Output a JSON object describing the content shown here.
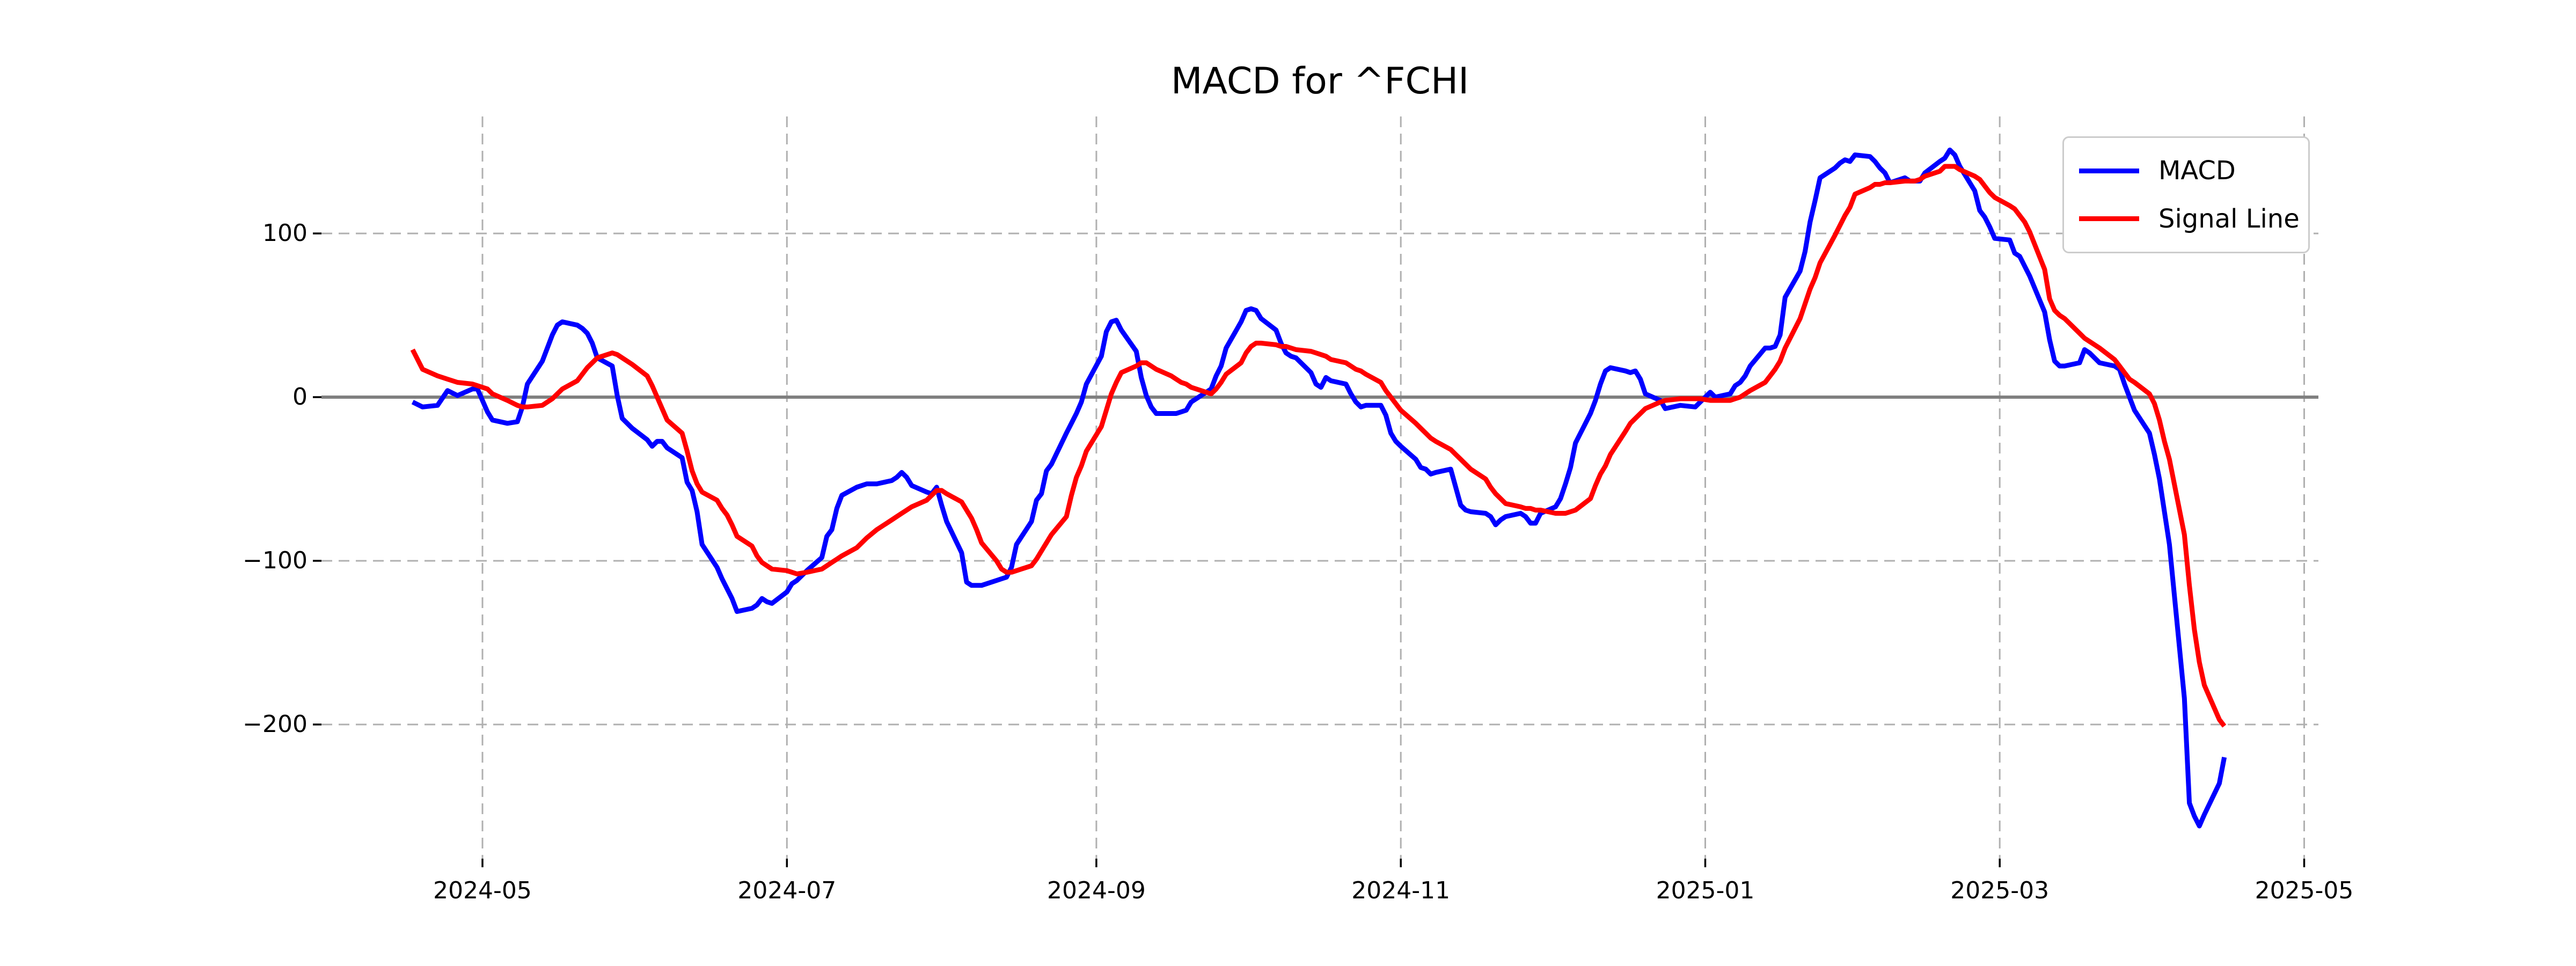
{
  "title": "MACD for ^FCHI",
  "legend": {
    "items": [
      {
        "label": "MACD",
        "color": "#0000ff",
        "icon": "line-sample"
      },
      {
        "label": "Signal Line",
        "color": "#ff0000",
        "icon": "line-sample"
      }
    ]
  },
  "axes": {
    "y_ticks": [
      {
        "label": "100",
        "value": 100
      },
      {
        "label": "0",
        "value": 0
      },
      {
        "label": "−100",
        "value": -100
      },
      {
        "label": "−200",
        "value": -200
      }
    ],
    "x_ticks": [
      {
        "label": "2024-05",
        "date": "2024-05-01"
      },
      {
        "label": "2024-07",
        "date": "2024-07-01"
      },
      {
        "label": "2024-09",
        "date": "2024-09-01"
      },
      {
        "label": "2024-11",
        "date": "2024-11-01"
      },
      {
        "label": "2025-01",
        "date": "2025-01-01"
      },
      {
        "label": "2025-03",
        "date": "2025-03-01"
      },
      {
        "label": "2025-05",
        "date": "2025-05-01"
      }
    ]
  },
  "chart_data": {
    "type": "line",
    "title": "MACD for ^FCHI",
    "xlabel": "",
    "ylabel": "",
    "grid": true,
    "grid_color": "#b0b0b0",
    "zero_line_color": "#808080",
    "legend_position": "upper right",
    "x_range": [
      "2024-03-30",
      "2025-05-03"
    ],
    "y_range": [
      -282,
      171
    ],
    "dates": [
      "2024-04-17",
      "2024-04-19",
      "2024-04-22",
      "2024-04-24",
      "2024-04-26",
      "2024-04-29",
      "2024-04-30",
      "2024-05-02",
      "2024-05-03",
      "2024-05-06",
      "2024-05-08",
      "2024-05-09",
      "2024-05-10",
      "2024-05-13",
      "2024-05-14",
      "2024-05-15",
      "2024-05-16",
      "2024-05-17",
      "2024-05-20",
      "2024-05-21",
      "2024-05-22",
      "2024-05-23",
      "2024-05-24",
      "2024-05-27",
      "2024-05-28",
      "2024-05-29",
      "2024-05-31",
      "2024-06-03",
      "2024-06-04",
      "2024-06-05",
      "2024-06-06",
      "2024-06-07",
      "2024-06-10",
      "2024-06-11",
      "2024-06-12",
      "2024-06-13",
      "2024-06-14",
      "2024-06-17",
      "2024-06-18",
      "2024-06-19",
      "2024-06-20",
      "2024-06-21",
      "2024-06-24",
      "2024-06-25",
      "2024-06-26",
      "2024-06-27",
      "2024-06-28",
      "2024-07-01",
      "2024-07-02",
      "2024-07-03",
      "2024-07-05",
      "2024-07-08",
      "2024-07-09",
      "2024-07-10",
      "2024-07-11",
      "2024-07-12",
      "2024-07-15",
      "2024-07-17",
      "2024-07-19",
      "2024-07-22",
      "2024-07-23",
      "2024-07-24",
      "2024-07-25",
      "2024-07-26",
      "2024-07-29",
      "2024-07-30",
      "2024-07-31",
      "2024-08-01",
      "2024-08-02",
      "2024-08-05",
      "2024-08-06",
      "2024-08-07",
      "2024-08-08",
      "2024-08-09",
      "2024-08-12",
      "2024-08-13",
      "2024-08-14",
      "2024-08-15",
      "2024-08-16",
      "2024-08-19",
      "2024-08-20",
      "2024-08-21",
      "2024-08-22",
      "2024-08-23",
      "2024-08-26",
      "2024-08-27",
      "2024-08-28",
      "2024-08-29",
      "2024-08-30",
      "2024-09-02",
      "2024-09-03",
      "2024-09-04",
      "2024-09-05",
      "2024-09-06",
      "2024-09-09",
      "2024-09-10",
      "2024-09-11",
      "2024-09-12",
      "2024-09-13",
      "2024-09-16",
      "2024-09-17",
      "2024-09-18",
      "2024-09-19",
      "2024-09-20",
      "2024-09-23",
      "2024-09-24",
      "2024-09-25",
      "2024-09-26",
      "2024-09-27",
      "2024-09-30",
      "2024-10-01",
      "2024-10-02",
      "2024-10-03",
      "2024-10-04",
      "2024-10-07",
      "2024-10-08",
      "2024-10-09",
      "2024-10-10",
      "2024-10-11",
      "2024-10-14",
      "2024-10-15",
      "2024-10-16",
      "2024-10-17",
      "2024-10-18",
      "2024-10-21",
      "2024-10-22",
      "2024-10-23",
      "2024-10-24",
      "2024-10-25",
      "2024-10-28",
      "2024-10-29",
      "2024-10-30",
      "2024-10-31",
      "2024-11-01",
      "2024-11-04",
      "2024-11-05",
      "2024-11-06",
      "2024-11-07",
      "2024-11-08",
      "2024-11-11",
      "2024-11-12",
      "2024-11-13",
      "2024-11-14",
      "2024-11-15",
      "2024-11-18",
      "2024-11-19",
      "2024-11-20",
      "2024-11-21",
      "2024-11-22",
      "2024-11-25",
      "2024-11-26",
      "2024-11-27",
      "2024-11-28",
      "2024-11-29",
      "2024-12-02",
      "2024-12-03",
      "2024-12-04",
      "2024-12-05",
      "2024-12-06",
      "2024-12-09",
      "2024-12-10",
      "2024-12-11",
      "2024-12-12",
      "2024-12-13",
      "2024-12-16",
      "2024-12-17",
      "2024-12-18",
      "2024-12-19",
      "2024-12-20",
      "2024-12-23",
      "2024-12-24",
      "2024-12-27",
      "2024-12-30",
      "2024-12-31",
      "2025-01-02",
      "2025-01-03",
      "2025-01-06",
      "2025-01-07",
      "2025-01-08",
      "2025-01-09",
      "2025-01-10",
      "2025-01-13",
      "2025-01-14",
      "2025-01-15",
      "2025-01-16",
      "2025-01-17",
      "2025-01-20",
      "2025-01-21",
      "2025-01-22",
      "2025-01-23",
      "2025-01-24",
      "2025-01-27",
      "2025-01-28",
      "2025-01-29",
      "2025-01-30",
      "2025-01-31",
      "2025-02-03",
      "2025-02-04",
      "2025-02-05",
      "2025-02-06",
      "2025-02-07",
      "2025-02-10",
      "2025-02-11",
      "2025-02-12",
      "2025-02-13",
      "2025-02-14",
      "2025-02-17",
      "2025-02-18",
      "2025-02-19",
      "2025-02-20",
      "2025-02-21",
      "2025-02-24",
      "2025-02-25",
      "2025-02-26",
      "2025-02-27",
      "2025-02-28",
      "2025-03-03",
      "2025-03-04",
      "2025-03-05",
      "2025-03-06",
      "2025-03-07",
      "2025-03-10",
      "2025-03-11",
      "2025-03-12",
      "2025-03-13",
      "2025-03-14",
      "2025-03-17",
      "2025-03-18",
      "2025-03-19",
      "2025-03-20",
      "2025-03-21",
      "2025-03-24",
      "2025-03-25",
      "2025-03-26",
      "2025-03-27",
      "2025-03-28",
      "2025-03-31",
      "2025-04-01",
      "2025-04-02",
      "2025-04-03",
      "2025-04-04",
      "2025-04-07",
      "2025-04-08",
      "2025-04-09",
      "2025-04-10",
      "2025-04-11",
      "2025-04-14",
      "2025-04-15"
    ],
    "series": [
      {
        "name": "MACD",
        "color": "#0000ff",
        "values": [
          -3,
          -6,
          -5,
          4,
          1,
          5,
          5,
          -9,
          -14,
          -16,
          -15,
          -6,
          8,
          22,
          30,
          38,
          44,
          46,
          44,
          42,
          39,
          33,
          24,
          19,
          1,
          -13,
          -19,
          -26,
          -30,
          -27,
          -27,
          -31,
          -37,
          -52,
          -57,
          -70,
          -90,
          -104,
          -111,
          -117,
          -123,
          -131,
          -129,
          -127,
          -123,
          -125,
          -126,
          -119,
          -114,
          -112,
          -106,
          -98,
          -85,
          -81,
          -68,
          -60,
          -55,
          -53,
          -53,
          -51,
          -49,
          -46,
          -49,
          -54,
          -58,
          -59,
          -55,
          -66,
          -76,
          -95,
          -113,
          -115,
          -115,
          -115,
          -112,
          -111,
          -110,
          -104,
          -90,
          -76,
          -63,
          -59,
          -45,
          -41,
          -22,
          -16,
          -10,
          -3,
          8,
          25,
          40,
          46,
          47,
          41,
          28,
          12,
          1,
          -6,
          -10,
          -10,
          -10,
          -9,
          -8,
          -3,
          3,
          5,
          13,
          19,
          30,
          46,
          53,
          54,
          53,
          48,
          41,
          33,
          27,
          25,
          24,
          15,
          8,
          6,
          12,
          10,
          8,
          2,
          -3,
          -6,
          -5,
          -5,
          -11,
          -22,
          -27,
          -30,
          -38,
          -43,
          -44,
          -47,
          -46,
          -44,
          -55,
          -66,
          -69,
          -70,
          -71,
          -73,
          -78,
          -75,
          -73,
          -71,
          -73,
          -77,
          -77,
          -71,
          -67,
          -62,
          -53,
          -43,
          -28,
          -10,
          -2,
          8,
          16,
          18,
          16,
          15,
          16,
          11,
          2,
          -2,
          -7,
          -5,
          -6,
          -3,
          3,
          0,
          2,
          7,
          9,
          13,
          19,
          30,
          30,
          31,
          38,
          61,
          77,
          89,
          107,
          120,
          134,
          140,
          143,
          145,
          144,
          148,
          147,
          144,
          140,
          137,
          131,
          134,
          132,
          132,
          132,
          137,
          144,
          146,
          151,
          148,
          141,
          126,
          114,
          110,
          104,
          97,
          96,
          88,
          86,
          80,
          74,
          52,
          35,
          22,
          19,
          19,
          21,
          29,
          27,
          24,
          21,
          19,
          17,
          8,
          0,
          -8,
          -22,
          -35,
          -50,
          -70,
          -90,
          -184,
          -248,
          -256,
          -262,
          -255,
          -236,
          -220
        ]
      },
      {
        "name": "Signal Line",
        "color": "#ff0000",
        "values": [
          29,
          17,
          13,
          11,
          9,
          8,
          7,
          5,
          2,
          -2,
          -5,
          -6,
          -6,
          -5,
          -3,
          -1,
          2,
          5,
          10,
          14,
          18,
          21,
          24,
          27,
          26,
          24,
          20,
          13,
          7,
          0,
          -7,
          -14,
          -22,
          -33,
          -45,
          -53,
          -58,
          -63,
          -68,
          -72,
          -78,
          -85,
          -91,
          -97,
          -101,
          -103,
          -105,
          -106,
          -107,
          -108,
          -107,
          -105,
          -103,
          -101,
          -99,
          -97,
          -92,
          -86,
          -81,
          -75,
          -73,
          -71,
          -69,
          -67,
          -63,
          -60,
          -57,
          -57,
          -59,
          -64,
          -69,
          -74,
          -81,
          -89,
          -100,
          -105,
          -107,
          -107,
          -106,
          -103,
          -99,
          -94,
          -89,
          -84,
          -73,
          -60,
          -49,
          -42,
          -33,
          -18,
          -8,
          2,
          9,
          15,
          19,
          21,
          21,
          19,
          17,
          13,
          11,
          9,
          8,
          6,
          3,
          2,
          5,
          9,
          14,
          21,
          27,
          31,
          33,
          33,
          32,
          31,
          31,
          30,
          29,
          28,
          27,
          26,
          25,
          23,
          21,
          19,
          17,
          16,
          14,
          9,
          4,
          0,
          -4,
          -8,
          -16,
          -19,
          -22,
          -25,
          -27,
          -32,
          -35,
          -38,
          -41,
          -44,
          -50,
          -55,
          -59,
          -62,
          -65,
          -67,
          -68,
          -68,
          -69,
          -69,
          -71,
          -71,
          -71,
          -70,
          -69,
          -62,
          -54,
          -47,
          -42,
          -35,
          -21,
          -16,
          -13,
          -10,
          -7,
          -3,
          -2,
          -1,
          -1,
          -1,
          -2,
          -2,
          -2,
          -1,
          0,
          2,
          4,
          9,
          13,
          17,
          22,
          30,
          48,
          57,
          66,
          73,
          82,
          99,
          105,
          111,
          116,
          124,
          128,
          130,
          130,
          131,
          131,
          132,
          132,
          132,
          133,
          135,
          138,
          141,
          141,
          141,
          139,
          135,
          133,
          129,
          125,
          122,
          117,
          115,
          111,
          107,
          101,
          78,
          60,
          53,
          50,
          48,
          39,
          36,
          34,
          32,
          30,
          23,
          19,
          15,
          11,
          9,
          2,
          -4,
          -14,
          -27,
          -38,
          -84,
          -115,
          -142,
          -162,
          -176,
          -197,
          -201
        ]
      }
    ]
  }
}
